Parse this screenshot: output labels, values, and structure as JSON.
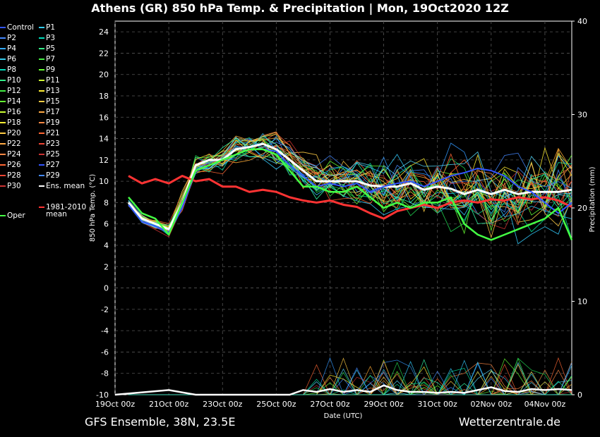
{
  "title": "Athens  (GR)  850 hPa Temp. & Precipitation | Mon, 19Oct2020 12Z",
  "footer": {
    "left": "GFS Ensemble, 38N, 23.5E",
    "right": "Wetterzentrale.de"
  },
  "colors": {
    "background": "#000000",
    "grid": "#555555",
    "ens_mean": "#ffffff",
    "climate_mean": "#ff3333",
    "control": "#3355ff",
    "oper": "#44ff44"
  },
  "legend": {
    "col1": [
      "Control",
      "P2",
      "P4",
      "P6",
      "P8",
      "P10",
      "P12",
      "P14",
      "P16",
      "P18",
      "P20",
      "P22",
      "P24",
      "P26",
      "P28",
      "P30"
    ],
    "col2": [
      "P1",
      "P3",
      "P5",
      "P7",
      "P9",
      "P11",
      "P13",
      "P15",
      "P17",
      "P19",
      "P21",
      "P23",
      "P25",
      "P27",
      "P29",
      "Ens. mean"
    ],
    "climate": [
      "1981-2010",
      "mean"
    ],
    "oper": "Oper"
  },
  "chart_data": {
    "type": "line",
    "title": "Athens  (GR)  850 hPa Temp. & Precipitation | Mon, 19Oct2020 12Z",
    "xlabel": "Date (UTC)",
    "ylabel": "850 hPa Temp. (°C)",
    "y2label": "Precipitation (mm)",
    "x_ticks": [
      "19Oct 00z",
      "21Oct 00z",
      "23Oct 00z",
      "25Oct 00z",
      "27Oct 00z",
      "29Oct 00z",
      "31Oct 00z",
      "02Nov 00z",
      "04Nov 00z"
    ],
    "y_ticks": [
      -10,
      -8,
      -6,
      -4,
      -2,
      0,
      2,
      4,
      6,
      8,
      10,
      12,
      14,
      16,
      18,
      20,
      22,
      24
    ],
    "y2_ticks": [
      0,
      10,
      20,
      30,
      40
    ],
    "ylim": [
      -10,
      25
    ],
    "y2lim": [
      0,
      40
    ],
    "x_range_days": [
      0,
      17
    ],
    "grid": true,
    "series": [
      {
        "name": "Ens. mean",
        "x": [
          0.5,
          1,
          1.5,
          2,
          2.5,
          3,
          3.5,
          4,
          4.5,
          5,
          5.5,
          6,
          6.5,
          7,
          7.5,
          8,
          8.5,
          9,
          9.5,
          10,
          10.5,
          11,
          11.5,
          12,
          12.5,
          13,
          13.5,
          14,
          14.5,
          15,
          15.5,
          16,
          16.5,
          17
        ],
        "values": [
          8,
          6.5,
          6,
          5.5,
          8,
          11.5,
          12,
          12,
          13,
          13.2,
          13.5,
          13,
          12,
          11,
          10,
          10,
          10,
          10,
          9.6,
          9.5,
          9.5,
          9.8,
          9.2,
          9.5,
          9.3,
          8.8,
          9.2,
          8.8,
          9.2,
          8.8,
          9,
          9,
          9,
          9.2
        ]
      },
      {
        "name": "1981-2010 mean",
        "x": [
          0.5,
          1,
          1.5,
          2,
          2.5,
          3,
          3.5,
          4,
          4.5,
          5,
          5.5,
          6,
          6.5,
          7,
          7.5,
          8,
          8.5,
          9,
          9.5,
          10,
          10.5,
          11,
          11.5,
          12,
          12.5,
          13,
          13.5,
          14,
          14.5,
          15,
          15.5,
          16,
          16.5,
          17
        ],
        "values": [
          10.5,
          9.8,
          10.2,
          9.8,
          10.5,
          10,
          10.2,
          9.5,
          9.5,
          9,
          9.2,
          9,
          8.5,
          8.2,
          8,
          8.2,
          7.8,
          7.6,
          7,
          6.5,
          7.2,
          7.5,
          7.8,
          7.5,
          8,
          8.2,
          8,
          8.3,
          8.2,
          8.5,
          8.3,
          8.5,
          8.2,
          7.6
        ]
      },
      {
        "name": "Control",
        "x": [
          0.5,
          1,
          1.5,
          2,
          2.5,
          3,
          3.5,
          4,
          4.5,
          5,
          5.5,
          6,
          6.5,
          7,
          7.5,
          8,
          8.5,
          9,
          9.5,
          10,
          10.5,
          11,
          11.5,
          12,
          12.5,
          13,
          13.5,
          14,
          14.5,
          15,
          15.5,
          16,
          16.5,
          17
        ],
        "values": [
          7.8,
          6.2,
          5.8,
          5.2,
          7.5,
          11,
          11.5,
          12,
          12.5,
          13,
          13,
          12.8,
          11.5,
          10.5,
          9.5,
          9.8,
          9.5,
          9.8,
          9,
          9.5,
          9.8,
          10,
          9.5,
          10,
          10.5,
          10.8,
          11.2,
          11,
          10.5,
          9.5,
          9,
          8,
          7,
          8
        ]
      },
      {
        "name": "Oper",
        "x": [
          0.5,
          1,
          1.5,
          2,
          2.5,
          3,
          3.5,
          4,
          4.5,
          5,
          5.5,
          6,
          6.5,
          7,
          7.5,
          8,
          8.5,
          9,
          9.5,
          10,
          10.5,
          11,
          11.5,
          12,
          12.5,
          13,
          13.5,
          14,
          14.5,
          15,
          15.5,
          16,
          16.5,
          17
        ],
        "values": [
          8.5,
          7,
          6.5,
          5,
          8,
          11,
          11.5,
          12,
          12.5,
          13,
          13,
          12.5,
          11,
          9.5,
          9.5,
          9,
          9,
          9.5,
          8.5,
          7.5,
          8,
          7.5,
          8,
          8,
          8.5,
          6,
          5,
          4.5,
          5,
          5.5,
          6,
          6.5,
          7.5,
          4.5
        ]
      }
    ],
    "precip_series": [
      {
        "name": "Ens. mean",
        "x": [
          0,
          2,
          3,
          5,
          6,
          6.5,
          7,
          7.5,
          8,
          8.5,
          9,
          9.5,
          10,
          10.5,
          11,
          11.5,
          12,
          12.5,
          13,
          13.5,
          14,
          14.5,
          15,
          15.5,
          16,
          16.5,
          17
        ],
        "values": [
          0,
          0.5,
          0,
          0,
          0,
          0,
          0.5,
          0.3,
          0.6,
          0.3,
          0.5,
          0.3,
          1,
          0.5,
          0.3,
          0.3,
          0.2,
          0.3,
          0.2,
          0.5,
          0.8,
          0.4,
          0.3,
          0.6,
          0.5,
          0.6,
          0.5
        ]
      }
    ]
  }
}
